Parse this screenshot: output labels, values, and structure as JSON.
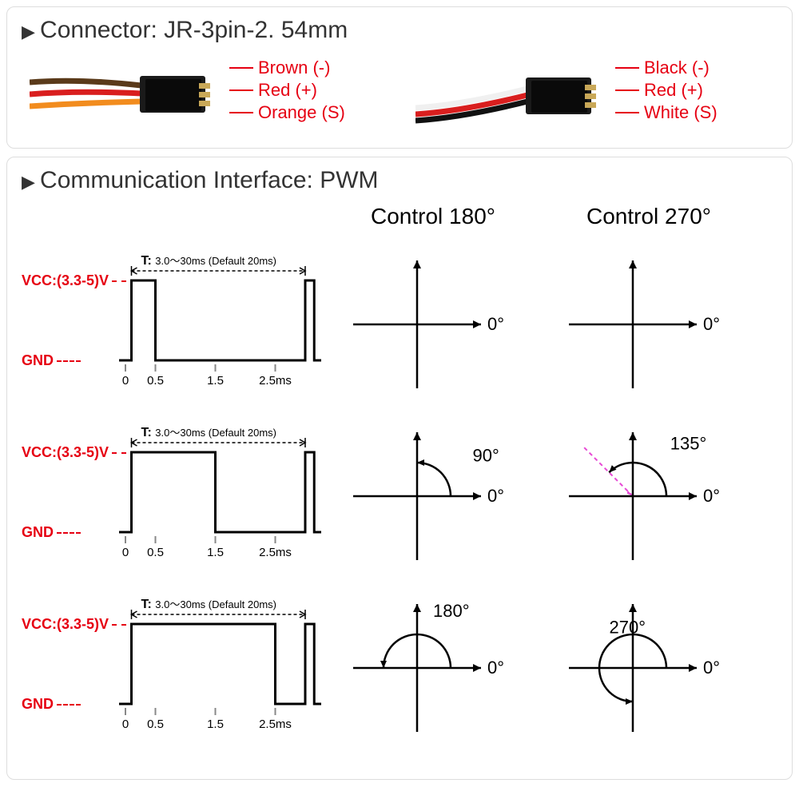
{
  "connector": {
    "title": "Connector: JR-3pin-2. 54mm",
    "sets": [
      {
        "wires": [
          {
            "label": "Brown (-)",
            "color": "#5a3a1a"
          },
          {
            "label": "Red (+)",
            "color": "#d91e1e"
          },
          {
            "label": "Orange (S)",
            "color": "#f28c1e"
          }
        ]
      },
      {
        "wires": [
          {
            "label": "Black (-)",
            "color": "#111111"
          },
          {
            "label": "Red (+)",
            "color": "#d91e1e"
          },
          {
            "label": "White (S)",
            "color": "#eeeeee"
          }
        ]
      }
    ],
    "label_color": "#e60012",
    "label_fontsize": 22
  },
  "pwm": {
    "title": "Communication Interface: PWM",
    "vcc_label": "VCC:(3.3-5)V",
    "gnd_label": "GND",
    "period_label": "T:",
    "period_text": "3.0～30ms (Default 20ms)",
    "tick_labels": [
      "0",
      "0.5",
      "1.5",
      "2.5ms"
    ],
    "tick_positions": [
      0,
      0.5,
      1.5,
      2.5
    ],
    "x_range": 3.2,
    "headers": {
      "col1": "",
      "col2": "Control 180°",
      "col3": "Control 270°"
    },
    "rows": [
      {
        "pulse_end_ms": 0.5,
        "angle180": 0,
        "angle270": 0
      },
      {
        "pulse_end_ms": 1.5,
        "angle180": 90,
        "angle270": 135
      },
      {
        "pulse_end_ms": 2.5,
        "angle180": 180,
        "angle270": 270
      }
    ],
    "zero_label": "0°",
    "second_pulse_ms": {
      "start": 3.0,
      "end": 3.15
    },
    "colors": {
      "label_red": "#e60012",
      "waveform": "#000000",
      "dashed": "#000000",
      "indicator_magenta": "#e749d5",
      "arc": "#000000",
      "arrow": "#000000"
    },
    "stroke_width": 2,
    "axis_stroke_width": 2.5,
    "label_font_size": 18,
    "tick_font_size": 15,
    "angle_font_size": 22
  }
}
